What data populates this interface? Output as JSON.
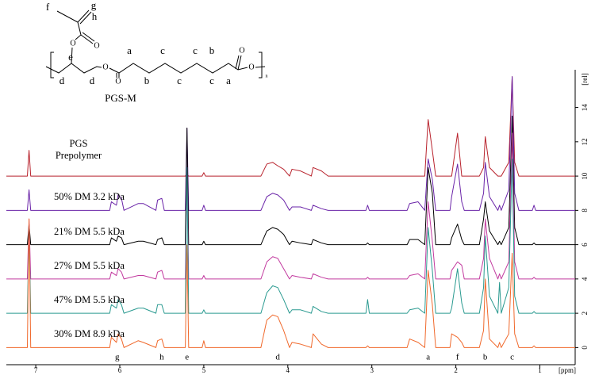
{
  "chart_data": {
    "type": "line",
    "x_label": "[ppm]",
    "y_label": "[rel]",
    "xlim": [
      7.35,
      0.58
    ],
    "xticks": [
      7,
      6,
      5,
      4,
      3,
      2,
      1
    ],
    "ylim": [
      -1,
      16.2
    ],
    "yticks": [
      0,
      2,
      4,
      6,
      8,
      10,
      12,
      14
    ],
    "x": [
      7.35,
      7.1,
      7.08,
      7.06,
      6.12,
      6.1,
      6.04,
      6.02,
      5.98,
      5.95,
      5.78,
      5.72,
      5.57,
      5.55,
      5.5,
      5.47,
      5.22,
      5.2,
      5.18,
      5.02,
      5.0,
      4.98,
      4.32,
      4.25,
      4.18,
      4.12,
      4.05,
      3.98,
      3.95,
      3.85,
      3.72,
      3.7,
      3.6,
      3.52,
      3.07,
      3.05,
      3.03,
      2.58,
      2.55,
      2.45,
      2.37,
      2.33,
      2.28,
      2.24,
      2.07,
      2.05,
      1.98,
      1.93,
      1.9,
      1.72,
      1.67,
      1.65,
      1.6,
      1.5,
      1.48,
      1.46,
      1.37,
      1.33,
      1.3,
      1.25,
      1.09,
      1.07,
      1.05,
      0.58
    ],
    "series": [
      {
        "name": "PGS Prepolymer",
        "color": "#b8222c",
        "values": [
          10,
          10,
          11.5,
          10,
          10,
          10,
          10,
          10,
          10,
          10,
          10,
          10,
          10,
          10,
          10,
          10,
          10,
          10.1,
          10,
          10,
          10.2,
          10,
          10,
          10.7,
          10.8,
          10.6,
          10.4,
          10,
          10.4,
          10.3,
          10,
          10.5,
          10.3,
          10,
          10,
          10,
          10,
          10,
          10,
          10,
          10,
          13.3,
          11.5,
          10,
          10,
          10,
          12.5,
          10,
          10,
          10,
          10.5,
          12.3,
          10.5,
          10,
          10,
          10,
          10.8,
          15.8,
          10.8,
          10,
          10,
          10,
          10,
          10
        ]
      },
      {
        "name": "50% DM 3.2 kDa",
        "color": "#6a24a8",
        "values": [
          8,
          8,
          9.2,
          8,
          8,
          8.5,
          8.3,
          8.9,
          8.7,
          8,
          8.4,
          8.4,
          8,
          8.6,
          8.7,
          8,
          8,
          12.8,
          8,
          8,
          8.3,
          8,
          8,
          8.8,
          9,
          8.9,
          8.6,
          8,
          8.2,
          8.2,
          8,
          8.3,
          8.1,
          8,
          8,
          8.3,
          8,
          8,
          8.4,
          8.5,
          8,
          11,
          9.8,
          8,
          8,
          8.8,
          10.7,
          8.5,
          8,
          8,
          9,
          10.8,
          8.8,
          8,
          8.3,
          8,
          9.2,
          15.8,
          9,
          8,
          8,
          8.3,
          8,
          8
        ]
      },
      {
        "name": "21% DM 5.5 kDa",
        "color": "#000000",
        "values": [
          6,
          6,
          7.2,
          6,
          6,
          6.4,
          6.2,
          6.5,
          6.4,
          6,
          6.2,
          6.2,
          6,
          6.3,
          6.4,
          6,
          6,
          12.8,
          6,
          6,
          6.2,
          6,
          6,
          6.8,
          7,
          6.9,
          6.6,
          6,
          6.2,
          6.1,
          6,
          6.3,
          6.1,
          6,
          6,
          6.1,
          6,
          6,
          6.3,
          6.3,
          6,
          10.5,
          9,
          6,
          6,
          6.4,
          7.2,
          6.3,
          6,
          6,
          7.5,
          8.5,
          6.8,
          6,
          6.2,
          6,
          7,
          13.5,
          7,
          6,
          6,
          6.1,
          6,
          6
        ]
      },
      {
        "name": "27% DM 5.5 kDa",
        "color": "#c23a9f",
        "values": [
          4,
          4,
          7.5,
          4,
          4,
          4.4,
          4.2,
          4.6,
          4.4,
          4,
          4.2,
          4.2,
          4,
          4.4,
          4.5,
          4,
          4,
          10.5,
          4,
          4,
          4.2,
          4,
          4,
          5,
          5.3,
          5.2,
          4.6,
          4,
          4.2,
          4.1,
          4,
          4.3,
          4.1,
          4,
          4,
          4.1,
          4,
          4,
          4.2,
          4.3,
          4,
          8.5,
          6.2,
          4,
          4,
          4.5,
          5,
          4.8,
          4,
          4,
          5.2,
          7.5,
          5.2,
          4,
          4.3,
          4,
          5,
          12.5,
          5,
          4,
          4,
          4.1,
          4,
          4
        ]
      },
      {
        "name": "47% DM 5.5 kDa",
        "color": "#2a9a90",
        "values": [
          2,
          2,
          7,
          2,
          2,
          2.5,
          2.3,
          2.8,
          2.5,
          2,
          2.3,
          2.3,
          2,
          2.5,
          2.5,
          2,
          2,
          10.5,
          2,
          2,
          2.2,
          2,
          2,
          3.2,
          3.6,
          3.5,
          2.8,
          2,
          2.2,
          2.2,
          2,
          2.4,
          2.1,
          2,
          2,
          2.8,
          2,
          2,
          2.2,
          2.3,
          2,
          7,
          4.5,
          2,
          2,
          2.3,
          4.6,
          2.6,
          2,
          2,
          3.5,
          6.5,
          3,
          2,
          3.8,
          2,
          3.5,
          11,
          3,
          2,
          2,
          2.1,
          2,
          2
        ]
      },
      {
        "name": "30% DM 8.9 kDa",
        "color": "#f0692c",
        "values": [
          0,
          0,
          7.5,
          0,
          0,
          0.6,
          0.3,
          0.8,
          0.5,
          0,
          0.4,
          0.3,
          0,
          0.4,
          0.5,
          0,
          0,
          6,
          0,
          0,
          0.4,
          0,
          0,
          1.6,
          1.9,
          1.8,
          1,
          0,
          0.3,
          0.2,
          0,
          0.8,
          0.2,
          0,
          0,
          0.1,
          0,
          0,
          0.5,
          0.3,
          0,
          4.5,
          2.5,
          0,
          0,
          0.8,
          0.6,
          0.3,
          0,
          0,
          1,
          4,
          0.5,
          0,
          0.3,
          0,
          0.8,
          5.5,
          0.8,
          0,
          0,
          0.1,
          0,
          0
        ]
      }
    ],
    "annotations": [
      {
        "text": "g",
        "x": 6.03
      },
      {
        "text": "h",
        "x": 5.5
      },
      {
        "text": "e",
        "x": 5.2
      },
      {
        "text": "d",
        "x": 4.12
      },
      {
        "text": "a",
        "x": 2.33
      },
      {
        "text": "f",
        "x": 1.98
      },
      {
        "text": "b",
        "x": 1.65
      },
      {
        "text": "c",
        "x": 1.33
      }
    ]
  },
  "structure": {
    "name": "PGS-M",
    "labels": [
      "f",
      "g",
      "h",
      "e",
      "d",
      "d",
      "a",
      "c",
      "c",
      "b",
      "b",
      "c",
      "c",
      "a"
    ],
    "atoms": [
      "O",
      "O",
      "O",
      "O",
      "O",
      "O"
    ],
    "repeat": "n"
  }
}
